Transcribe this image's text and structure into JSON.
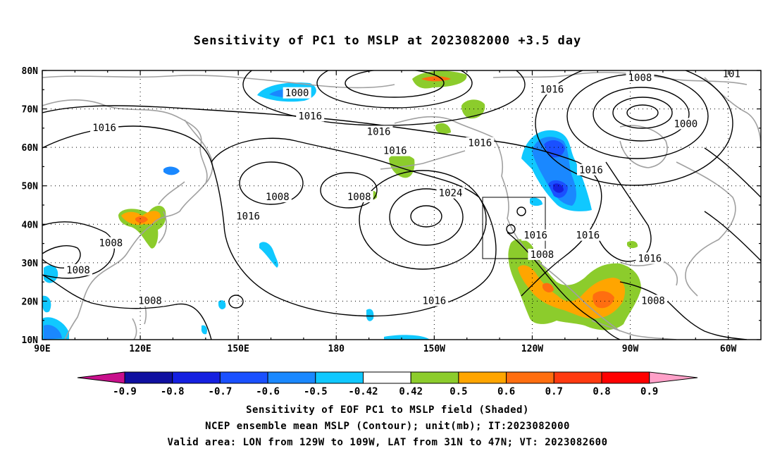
{
  "title": "Sensitivity of PC1 to MSLP at 2023082000 +3.5 day",
  "axes": {
    "lon_labels": [
      "90E",
      "120E",
      "150E",
      "180",
      "150W",
      "120W",
      "90W",
      "60W"
    ],
    "lat_labels": [
      "80N",
      "70N",
      "60N",
      "50N",
      "40N",
      "30N",
      "20N",
      "10N"
    ]
  },
  "contour_labels": [
    {
      "text": "1000",
      "lon": 168,
      "lat": 74
    },
    {
      "text": "1016",
      "lon": 172,
      "lat": 68
    },
    {
      "text": "1016",
      "lon": 193,
      "lat": 64
    },
    {
      "text": "1016",
      "lon": 109,
      "lat": 65
    },
    {
      "text": "1016",
      "lon": 198,
      "lat": 59
    },
    {
      "text": "1016",
      "lon": 246,
      "lat": 75
    },
    {
      "text": "1008",
      "lon": 273,
      "lat": 78
    },
    {
      "text": "1016",
      "lon": 224,
      "lat": 61
    },
    {
      "text": "1016",
      "lon": 258,
      "lat": 54
    },
    {
      "text": "1000",
      "lon": 287,
      "lat": 66
    },
    {
      "text": "1024",
      "lon": 215,
      "lat": 48
    },
    {
      "text": "1008",
      "lon": 162,
      "lat": 47
    },
    {
      "text": "1008",
      "lon": 187,
      "lat": 47
    },
    {
      "text": "1016",
      "lon": 153,
      "lat": 42
    },
    {
      "text": "1016",
      "lon": 241,
      "lat": 37
    },
    {
      "text": "1016",
      "lon": 257,
      "lat": 37
    },
    {
      "text": "1008",
      "lon": 243,
      "lat": 32
    },
    {
      "text": "1016",
      "lon": 276,
      "lat": 31
    },
    {
      "text": "1008",
      "lon": 111,
      "lat": 35
    },
    {
      "text": "1008",
      "lon": 101,
      "lat": 28
    },
    {
      "text": "1016",
      "lon": 210,
      "lat": 20
    },
    {
      "text": "1008",
      "lon": 123,
      "lat": 20
    },
    {
      "text": "1008",
      "lon": 277,
      "lat": 20
    },
    {
      "text": "101",
      "lon": 301,
      "lat": 79
    }
  ],
  "colorbar": {
    "labels": [
      "-0.9",
      "-0.8",
      "-0.7",
      "-0.6",
      "-0.5",
      "-0.42",
      "0.42",
      "0.5",
      "0.6",
      "0.7",
      "0.8",
      "0.9"
    ],
    "colors": [
      "#1010a0",
      "#1520e0",
      "#1a50ff",
      "#1a88ff",
      "#10c8ff",
      "#ffffff",
      "#8ccc2c",
      "#ffa500",
      "#ff6e10",
      "#ff3a10",
      "#ff0000"
    ],
    "left_triangle_color": "#c8108c",
    "right_triangle_color": "#ffa0c8"
  },
  "footer": {
    "line1": "Sensitivity of EOF PC1 to MSLP field (Shaded)",
    "line2": "NCEP ensemble mean MSLP (Contour); unit(mb); IT:2023082000",
    "line3": "Valid area: LON from 129W to 109W, LAT from 31N to 47N; VT: 2023082600"
  }
}
